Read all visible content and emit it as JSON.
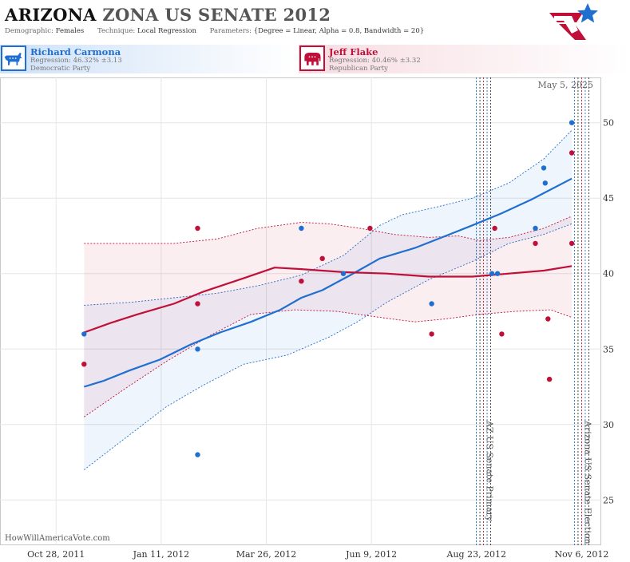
{
  "header": {
    "state": "ARIZONA",
    "rest": "ZONA US SENATE 2012",
    "demographic_label": "Demographic:",
    "demographic_value": "Females",
    "technique_label": "Technique:",
    "technique_value": "Local Regression",
    "parameters_label": "Parameters:",
    "parameters_value": "{Degree = Linear, Alpha = 0.8, Bandwidth = 20}"
  },
  "logo": {
    "icon": "star-flag-logo-icon",
    "colors": [
      "#c0103a",
      "#1f6fd0"
    ]
  },
  "candidates": [
    {
      "name": "Richard Carmona",
      "regression": "Regression: 46.32% ±3.13",
      "party": "Democratic Party",
      "icon": "donkey-icon",
      "color": "#1f6fd0"
    },
    {
      "name": "Jeff Flake",
      "regression": "Regression: 40.46% ±3.32",
      "party": "Republican Party",
      "icon": "elephant-icon",
      "color": "#c0103a"
    }
  ],
  "watermark": "HowWillAmericaVote.com",
  "chart_data": {
    "type": "scatter",
    "x_axis": {
      "type": "date",
      "ticks": [
        "Oct 28, 2011",
        "Jan 11, 2012",
        "Mar 26, 2012",
        "Jun 9, 2012",
        "Aug 23, 2012",
        "Nov 6, 2012"
      ],
      "range": [
        "2011-09-18",
        "2012-11-20"
      ]
    },
    "y_axis": {
      "position": "right",
      "ticks": [
        25,
        30,
        35,
        40,
        45,
        50
      ],
      "range": [
        22,
        53
      ]
    },
    "grid": true,
    "current_date_label": "May 5, 2025",
    "events": [
      {
        "label": "AZ US Senate Primary",
        "date": "2012-08-28"
      },
      {
        "label": "Arizona US Senate Election",
        "date": "2012-11-06"
      }
    ],
    "series": [
      {
        "name": "Richard Carmona",
        "color": "#1f6fd0",
        "points": [
          [
            "2011-11-17",
            36
          ],
          [
            "2012-02-06",
            35
          ],
          [
            "2012-02-06",
            28
          ],
          [
            "2012-04-20",
            43
          ],
          [
            "2012-05-20",
            40
          ],
          [
            "2012-07-22",
            38
          ],
          [
            "2012-09-03",
            40
          ],
          [
            "2012-09-07",
            40
          ],
          [
            "2012-10-04",
            43
          ],
          [
            "2012-10-10",
            47
          ],
          [
            "2012-10-11",
            46
          ],
          [
            "2012-10-30",
            50
          ]
        ],
        "trend": [
          [
            "2011-11-17",
            32.5
          ],
          [
            "2011-12-01",
            32.9
          ],
          [
            "2011-12-20",
            33.6
          ],
          [
            "2012-01-10",
            34.3
          ],
          [
            "2012-02-01",
            35.3
          ],
          [
            "2012-02-22",
            36.1
          ],
          [
            "2012-03-15",
            36.8
          ],
          [
            "2012-04-05",
            37.6
          ],
          [
            "2012-04-20",
            38.4
          ],
          [
            "2012-05-05",
            38.9
          ],
          [
            "2012-05-25",
            39.9
          ],
          [
            "2012-06-15",
            41.0
          ],
          [
            "2012-07-10",
            41.7
          ],
          [
            "2012-08-01",
            42.5
          ],
          [
            "2012-08-20",
            43.2
          ],
          [
            "2012-09-10",
            44.0
          ],
          [
            "2012-10-01",
            44.9
          ],
          [
            "2012-10-30",
            46.3
          ]
        ],
        "band_upper": [
          [
            "2011-11-17",
            37.9
          ],
          [
            "2011-12-20",
            38.1
          ],
          [
            "2012-01-20",
            38.4
          ],
          [
            "2012-02-20",
            38.7
          ],
          [
            "2012-03-20",
            39.2
          ],
          [
            "2012-04-20",
            39.9
          ],
          [
            "2012-05-20",
            41.2
          ],
          [
            "2012-06-15",
            43.2
          ],
          [
            "2012-07-01",
            43.9
          ],
          [
            "2012-07-25",
            44.4
          ],
          [
            "2012-08-20",
            45.0
          ],
          [
            "2012-09-15",
            46.0
          ],
          [
            "2012-10-10",
            47.6
          ],
          [
            "2012-10-30",
            49.5
          ]
        ],
        "band_lower": [
          [
            "2011-11-17",
            27.0
          ],
          [
            "2011-12-15",
            29.0
          ],
          [
            "2012-01-15",
            31.2
          ],
          [
            "2012-02-10",
            32.6
          ],
          [
            "2012-03-10",
            34.0
          ],
          [
            "2012-04-10",
            34.6
          ],
          [
            "2012-05-10",
            35.8
          ],
          [
            "2012-05-30",
            36.8
          ],
          [
            "2012-06-20",
            38.1
          ],
          [
            "2012-07-20",
            39.6
          ],
          [
            "2012-08-20",
            40.8
          ],
          [
            "2012-09-15",
            42.0
          ],
          [
            "2012-10-10",
            42.6
          ],
          [
            "2012-10-30",
            43.3
          ]
        ]
      },
      {
        "name": "Jeff Flake",
        "color": "#c0103a",
        "points": [
          [
            "2011-11-17",
            34
          ],
          [
            "2012-02-06",
            43
          ],
          [
            "2012-02-06",
            38
          ],
          [
            "2012-04-20",
            39.5
          ],
          [
            "2012-05-05",
            41
          ],
          [
            "2012-06-08",
            43
          ],
          [
            "2012-07-22",
            36
          ],
          [
            "2012-09-05",
            43
          ],
          [
            "2012-09-10",
            36
          ],
          [
            "2012-10-04",
            42
          ],
          [
            "2012-10-13",
            37
          ],
          [
            "2012-10-14",
            33
          ],
          [
            "2012-10-30",
            48
          ],
          [
            "2012-10-30",
            42
          ]
        ],
        "trend": [
          [
            "2011-11-17",
            36.1
          ],
          [
            "2011-12-05",
            36.7
          ],
          [
            "2011-12-25",
            37.3
          ],
          [
            "2012-01-20",
            38.0
          ],
          [
            "2012-02-10",
            38.8
          ],
          [
            "2012-03-10",
            39.7
          ],
          [
            "2012-04-01",
            40.4
          ],
          [
            "2012-04-20",
            40.3
          ],
          [
            "2012-05-20",
            40.1
          ],
          [
            "2012-06-20",
            40.0
          ],
          [
            "2012-07-20",
            39.8
          ],
          [
            "2012-08-20",
            39.8
          ],
          [
            "2012-09-15",
            40.0
          ],
          [
            "2012-10-10",
            40.2
          ],
          [
            "2012-10-30",
            40.5
          ]
        ],
        "band_upper": [
          [
            "2011-11-17",
            42.0
          ],
          [
            "2011-12-20",
            42.0
          ],
          [
            "2012-01-20",
            42.0
          ],
          [
            "2012-02-20",
            42.3
          ],
          [
            "2012-03-20",
            43.0
          ],
          [
            "2012-04-20",
            43.4
          ],
          [
            "2012-05-10",
            43.3
          ],
          [
            "2012-06-01",
            43.0
          ],
          [
            "2012-06-25",
            42.6
          ],
          [
            "2012-07-20",
            42.4
          ],
          [
            "2012-08-10",
            42.5
          ],
          [
            "2012-08-25",
            42.2
          ],
          [
            "2012-09-15",
            42.4
          ],
          [
            "2012-10-10",
            43.0
          ],
          [
            "2012-10-30",
            43.8
          ]
        ],
        "band_lower": [
          [
            "2011-11-17",
            30.5
          ],
          [
            "2011-12-15",
            32.3
          ],
          [
            "2012-01-15",
            34.2
          ],
          [
            "2012-02-15",
            35.9
          ],
          [
            "2012-03-15",
            37.3
          ],
          [
            "2012-04-15",
            37.6
          ],
          [
            "2012-05-15",
            37.5
          ],
          [
            "2012-06-15",
            37.1
          ],
          [
            "2012-07-10",
            36.8
          ],
          [
            "2012-08-01",
            37.0
          ],
          [
            "2012-08-25",
            37.3
          ],
          [
            "2012-09-20",
            37.5
          ],
          [
            "2012-10-15",
            37.6
          ],
          [
            "2012-10-30",
            37.1
          ]
        ]
      }
    ]
  }
}
